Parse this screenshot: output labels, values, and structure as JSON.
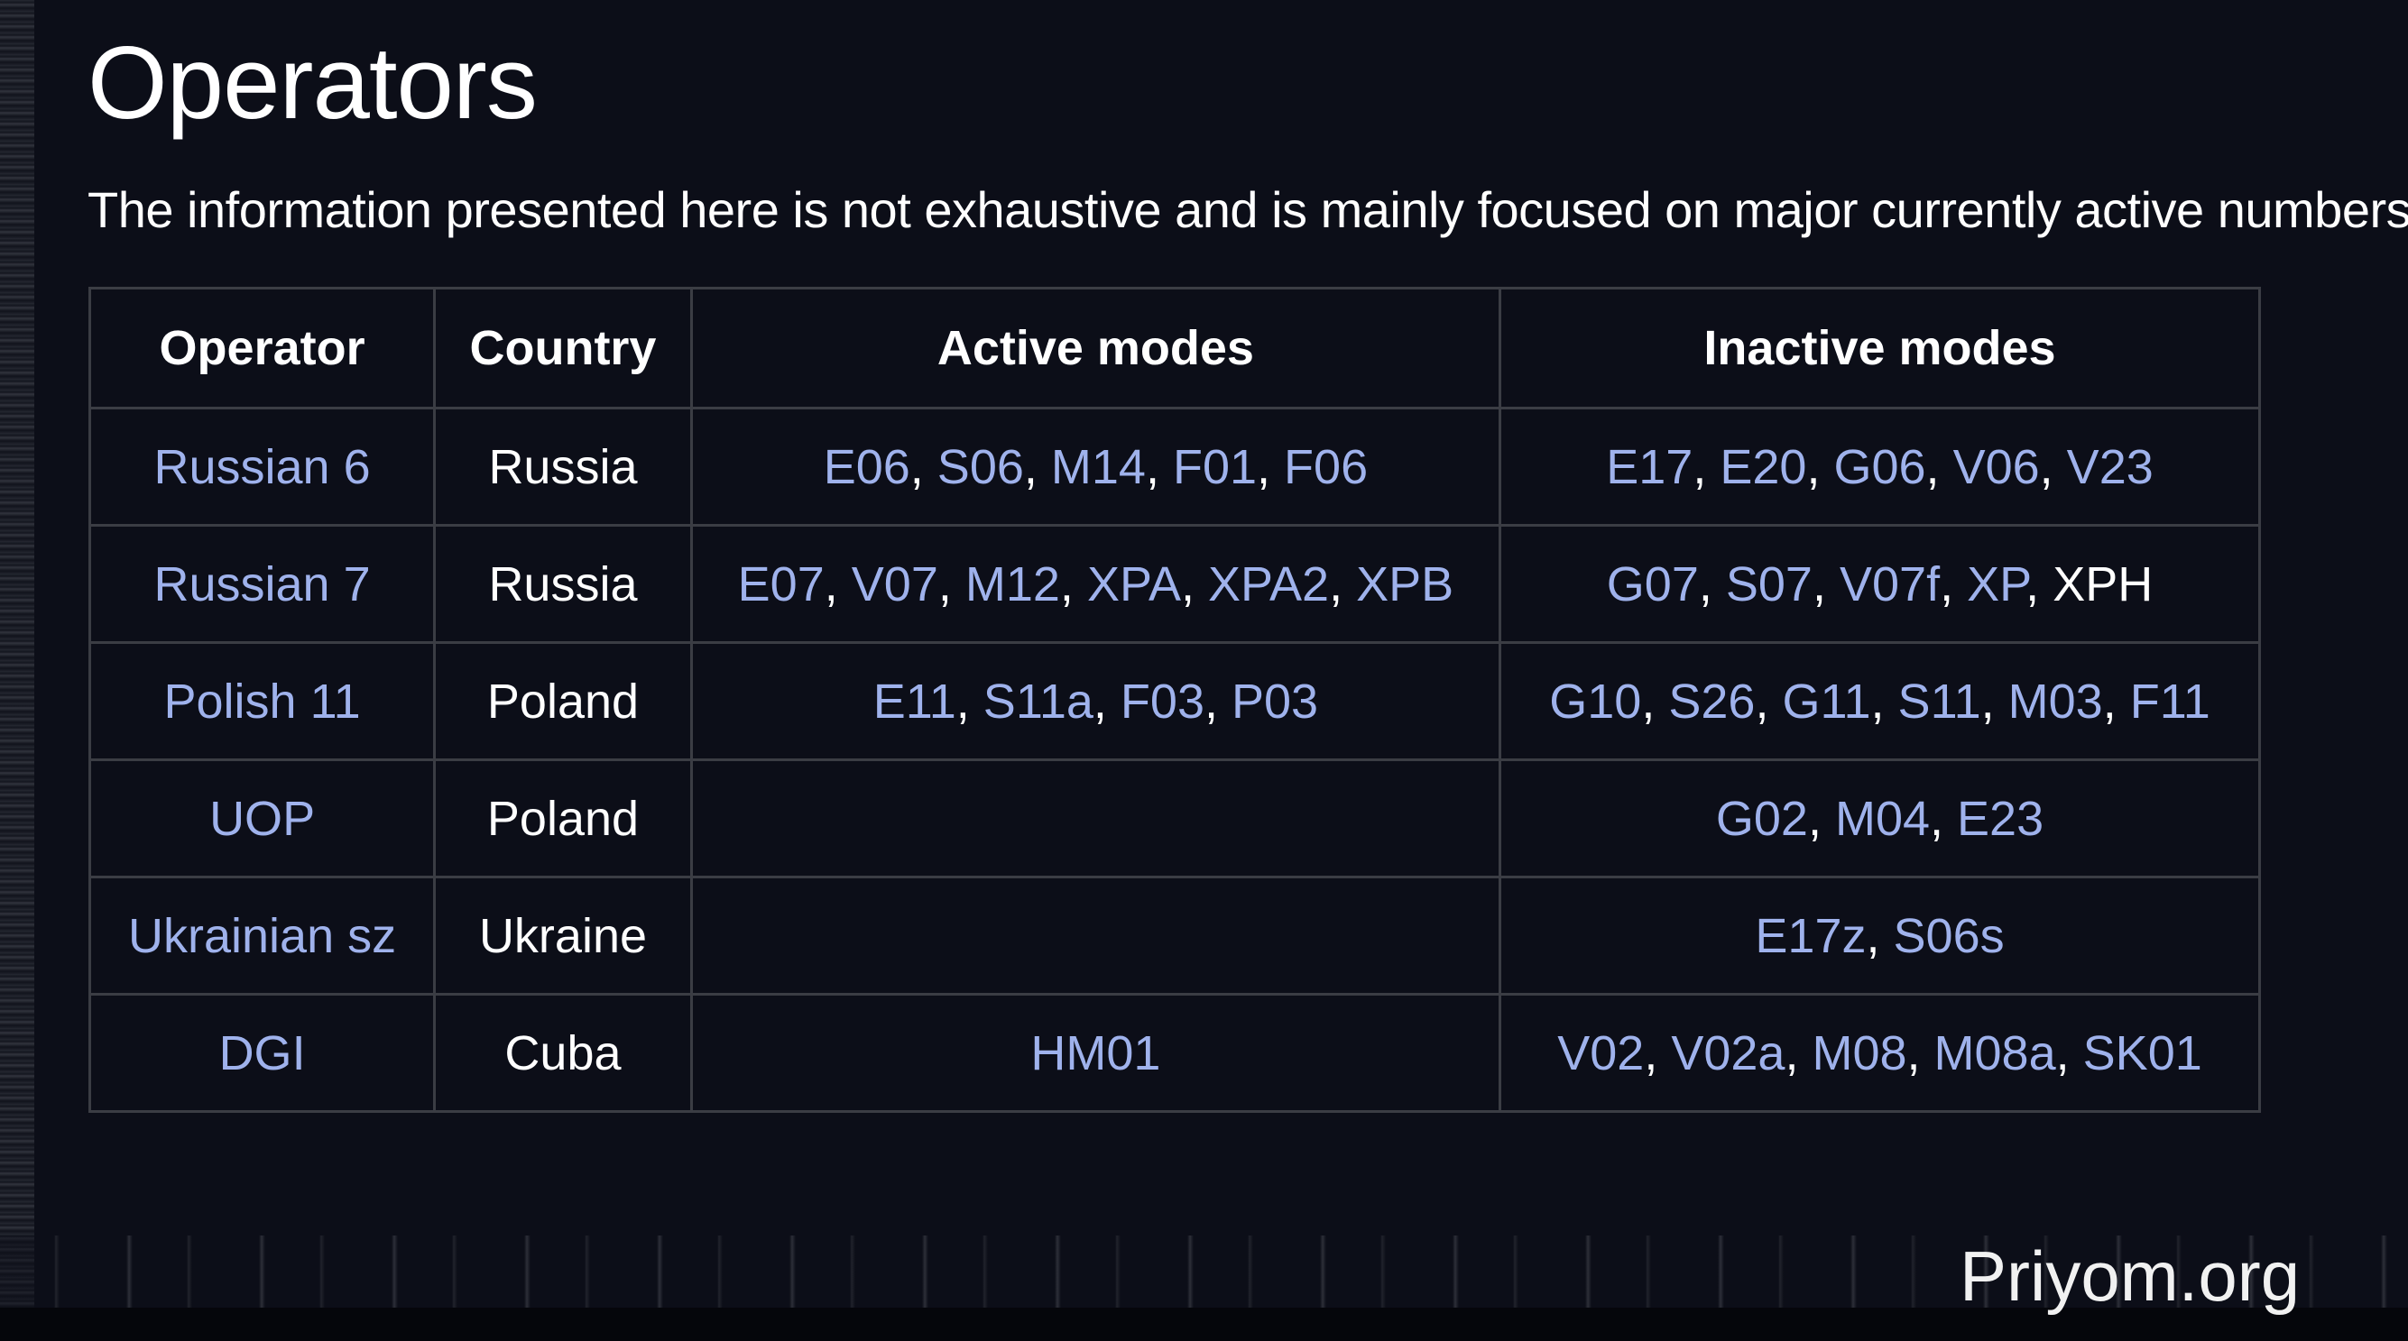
{
  "page": {
    "title": "Operators",
    "intro": "The information presented here is not exhaustive and is mainly focused on major currently active numbers"
  },
  "table": {
    "headers": [
      "Operator",
      "Country",
      "Active modes",
      "Inactive modes"
    ],
    "rows": [
      {
        "operator": "Russian 6",
        "country": "Russia",
        "active": [
          {
            "t": "E06",
            "link": true
          },
          {
            "t": "S06",
            "link": true
          },
          {
            "t": "M14",
            "link": true
          },
          {
            "t": "F01",
            "link": true
          },
          {
            "t": "F06",
            "link": true
          }
        ],
        "inactive": [
          {
            "t": "E17",
            "link": true
          },
          {
            "t": "E20",
            "link": true
          },
          {
            "t": "G06",
            "link": true
          },
          {
            "t": "V06",
            "link": true
          },
          {
            "t": "V23",
            "link": true
          }
        ]
      },
      {
        "operator": "Russian 7",
        "country": "Russia",
        "active": [
          {
            "t": "E07",
            "link": true
          },
          {
            "t": "V07",
            "link": true
          },
          {
            "t": "M12",
            "link": true
          },
          {
            "t": "XPA",
            "link": true
          },
          {
            "t": "XPA2",
            "link": true
          },
          {
            "t": "XPB",
            "link": true
          }
        ],
        "inactive": [
          {
            "t": "G07",
            "link": true
          },
          {
            "t": "S07",
            "link": true
          },
          {
            "t": "V07f",
            "link": true
          },
          {
            "t": "XP",
            "link": true
          },
          {
            "t": "XPH",
            "link": false
          }
        ]
      },
      {
        "operator": "Polish 11",
        "country": "Poland",
        "active": [
          {
            "t": "E11",
            "link": true
          },
          {
            "t": "S11a",
            "link": true
          },
          {
            "t": "F03",
            "link": true
          },
          {
            "t": "P03",
            "link": true
          }
        ],
        "inactive": [
          {
            "t": "G10",
            "link": true
          },
          {
            "t": "S26",
            "link": true
          },
          {
            "t": "G11",
            "link": true
          },
          {
            "t": "S11",
            "link": true
          },
          {
            "t": "M03",
            "link": true
          },
          {
            "t": "F11",
            "link": true
          }
        ]
      },
      {
        "operator": "UOP",
        "country": "Poland",
        "active": [],
        "inactive": [
          {
            "t": "G02",
            "link": true
          },
          {
            "t": "M04",
            "link": true
          },
          {
            "t": "E23",
            "link": true
          }
        ]
      },
      {
        "operator": "Ukrainian sz",
        "country": "Ukraine",
        "active": [],
        "inactive": [
          {
            "t": "E17z",
            "link": true
          },
          {
            "t": "S06s",
            "link": true
          }
        ]
      },
      {
        "operator": "DGI",
        "country": "Cuba",
        "active": [
          {
            "t": "HM01",
            "link": true
          }
        ],
        "inactive": [
          {
            "t": "V02",
            "link": true
          },
          {
            "t": "V02a",
            "link": true
          },
          {
            "t": "M08",
            "link": true
          },
          {
            "t": "M08a",
            "link": true
          },
          {
            "t": "SK01",
            "link": true
          }
        ]
      }
    ]
  },
  "watermark": "Priyom.org",
  "colors": {
    "background": "#0c0e18",
    "link": "#9fb2ec",
    "text": "#ffffff",
    "border": "#3b3d44"
  }
}
